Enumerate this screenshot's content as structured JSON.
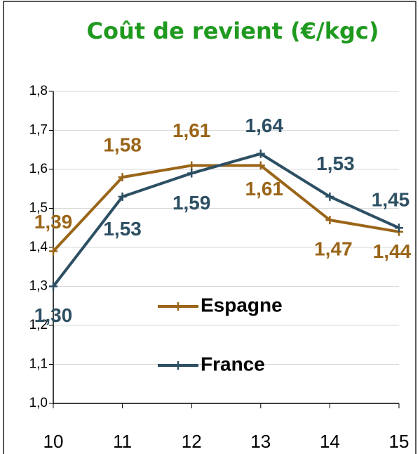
{
  "chart_data": {
    "type": "line",
    "title": "Coût de revient (€/kgc)",
    "x": [
      10,
      11,
      12,
      13,
      14,
      15
    ],
    "series": [
      {
        "name": "Espagne",
        "color": "#9a6518",
        "values": [
          1.39,
          1.58,
          1.61,
          1.61,
          1.47,
          1.44
        ],
        "value_labels": [
          "1,39",
          "1,58",
          "1,61",
          "1,61",
          "1,47",
          "1,44"
        ]
      },
      {
        "name": "France",
        "color": "#2d4f63",
        "values": [
          1.3,
          1.53,
          1.59,
          1.64,
          1.53,
          1.45
        ],
        "value_labels": [
          "1,30",
          "1,53",
          "1,59",
          "1,64",
          "1,53",
          "1,45"
        ]
      }
    ],
    "xlim": [
      10,
      15
    ],
    "xticks": [
      10,
      11,
      12,
      13,
      14,
      15
    ],
    "ylim": [
      1.0,
      1.8
    ],
    "yticks": [
      {
        "value": 1.0,
        "label": "1,0"
      },
      {
        "value": 1.1,
        "label": "1,1"
      },
      {
        "value": 1.2,
        "label": "1,2"
      },
      {
        "value": 1.3,
        "label": "1,3"
      },
      {
        "value": 1.4,
        "label": "1,4"
      },
      {
        "value": 1.5,
        "label": "1,5"
      },
      {
        "value": 1.6,
        "label": "1,6"
      },
      {
        "value": 1.7,
        "label": "1,7"
      },
      {
        "value": 1.8,
        "label": "1,8"
      }
    ],
    "grid": true
  }
}
